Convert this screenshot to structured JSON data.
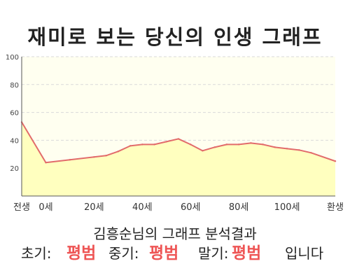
{
  "title": "재미로 보는 당신의 인생 그래프",
  "subtitle": "김흥순님의 그래프 분석결과",
  "result": {
    "early_label": "초기:",
    "early_value": "평범",
    "mid_label": "중기:",
    "mid_value": "평범",
    "late_label": "말기:",
    "late_value": "평범",
    "ending": "입니다"
  },
  "colors": {
    "line": "#e26b6b",
    "fill": "#ffffbf",
    "plot_bg": "#fffff0",
    "grid": "#d9d9d9",
    "result_value": "#ee5555"
  },
  "chart_data": {
    "type": "area",
    "x": [
      -10,
      0,
      10,
      20,
      25,
      30,
      35,
      40,
      45,
      50,
      55,
      60,
      65,
      70,
      75,
      80,
      85,
      90,
      95,
      100,
      105,
      110,
      120
    ],
    "y": [
      53,
      24,
      26,
      28,
      29,
      32,
      36,
      37,
      37,
      39,
      41,
      37,
      32.5,
      35,
      37,
      37,
      38,
      37,
      35,
      34,
      33,
      31,
      25
    ],
    "xlim": [
      -10,
      120
    ],
    "ylim": [
      0,
      100
    ],
    "yticks": [
      20,
      40,
      60,
      80,
      100
    ],
    "xtick_positions": [
      -10,
      0,
      20,
      40,
      60,
      80,
      100,
      120
    ],
    "xtick_labels": [
      "전생",
      "0세",
      "20세",
      "40세",
      "60세",
      "80세",
      "100세",
      "환생"
    ],
    "grid": true,
    "xlabel": "",
    "ylabel": ""
  }
}
